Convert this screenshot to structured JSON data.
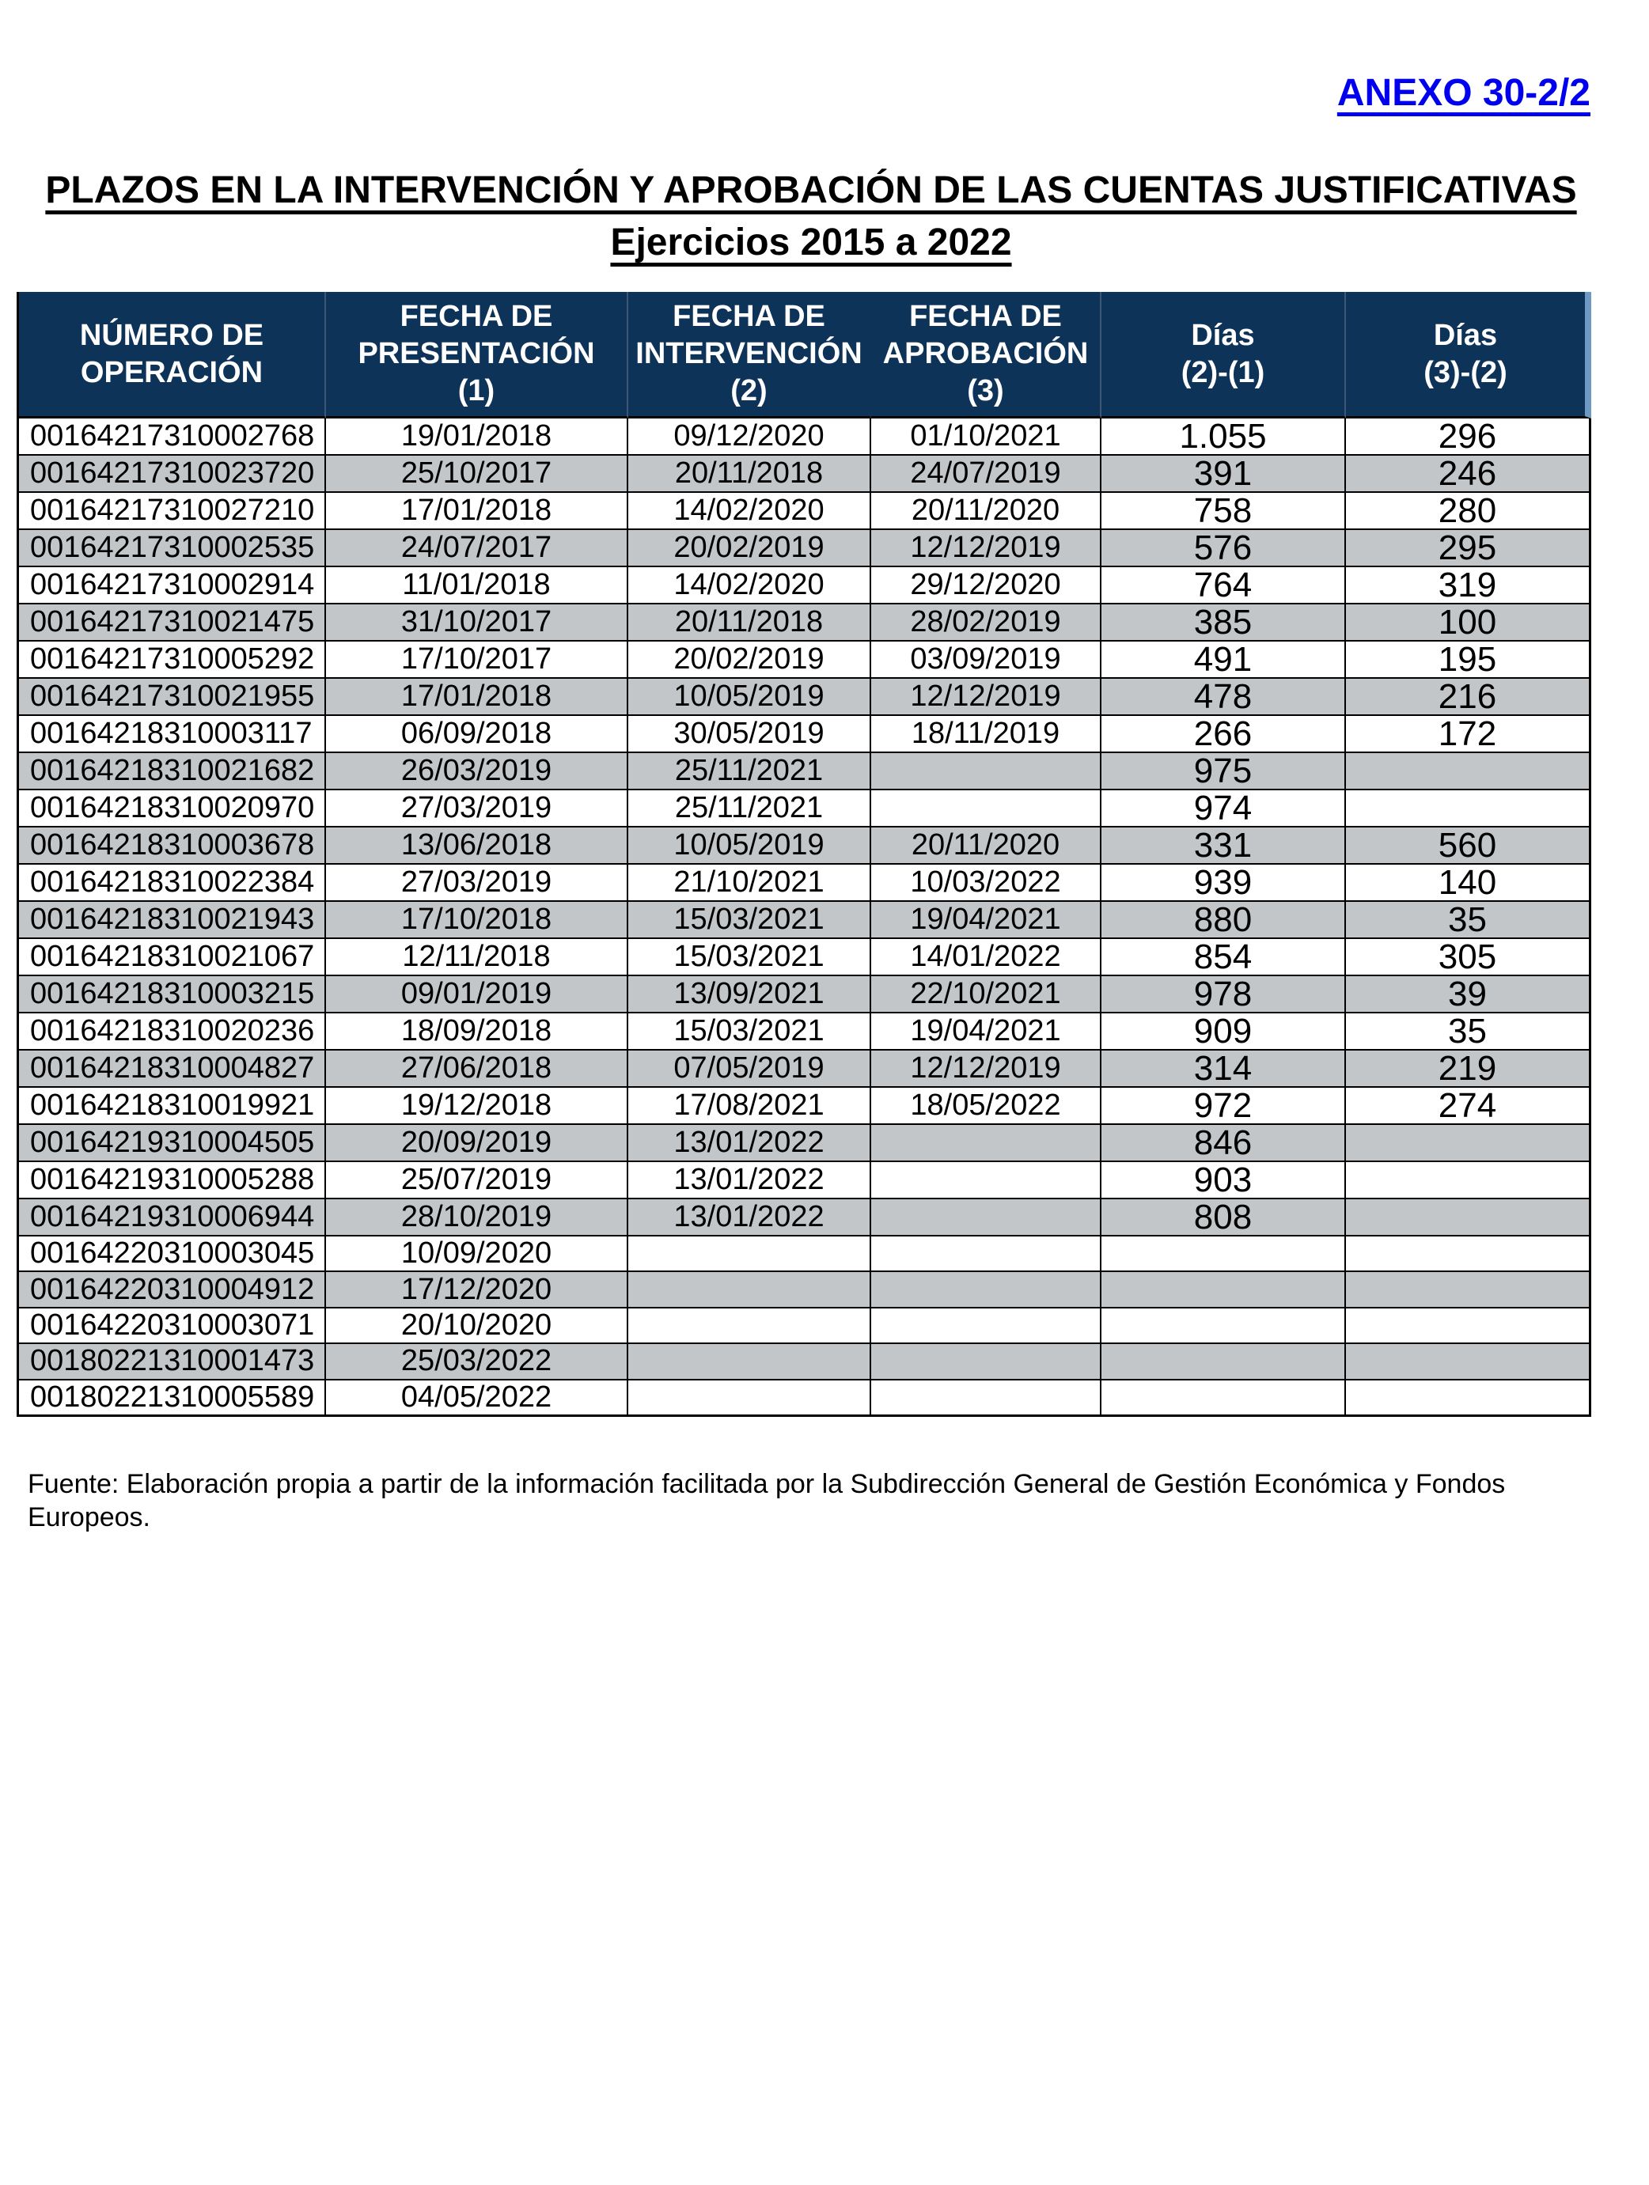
{
  "page": {
    "annex_label": "ANEXO 30-2/2",
    "title_line1": "PLAZOS EN LA INTERVENCIÓN Y APROBACIÓN DE LAS CUENTAS JUSTIFICATIVAS",
    "title_line2": "Ejercicios 2015 a 2022",
    "footer": "Fuente: Elaboración propia a partir de la información facilitada por la Subdirección General de Gestión Económica y Fondos Europeos."
  },
  "colors": {
    "header_bg": "#0E3358",
    "header_text": "#FFFFFF",
    "row_alt_bg": "#C2C6C9",
    "annex_blue": "#0000EE",
    "border_black": "#000000",
    "header_edge_light_blue": "#6E99C2"
  },
  "table": {
    "header_lines": [
      [
        "NÚMERO DE",
        "OPERACIÓN"
      ],
      [
        "FECHA DE",
        "PRESENTACIÓN",
        "(1)"
      ],
      [
        "FECHA DE",
        "INTERVENCIÓN",
        "(2)"
      ],
      [
        "FECHA DE",
        "APROBACIÓN",
        "(3)"
      ],
      [
        "Días",
        "(2)-(1)"
      ],
      [
        "Días",
        "(3)-(2)"
      ]
    ],
    "rows": [
      [
        "00164217310002768",
        "19/01/2018",
        "09/12/2020",
        "01/10/2021",
        "1.055",
        "296"
      ],
      [
        "00164217310023720",
        "25/10/2017",
        "20/11/2018",
        "24/07/2019",
        "391",
        "246"
      ],
      [
        "00164217310027210",
        "17/01/2018",
        "14/02/2020",
        "20/11/2020",
        "758",
        "280"
      ],
      [
        "00164217310002535",
        "24/07/2017",
        "20/02/2019",
        "12/12/2019",
        "576",
        "295"
      ],
      [
        "00164217310002914",
        "11/01/2018",
        "14/02/2020",
        "29/12/2020",
        "764",
        "319"
      ],
      [
        "00164217310021475",
        "31/10/2017",
        "20/11/2018",
        "28/02/2019",
        "385",
        "100"
      ],
      [
        "00164217310005292",
        "17/10/2017",
        "20/02/2019",
        "03/09/2019",
        "491",
        "195"
      ],
      [
        "00164217310021955",
        "17/01/2018",
        "10/05/2019",
        "12/12/2019",
        "478",
        "216"
      ],
      [
        "00164218310003117",
        "06/09/2018",
        "30/05/2019",
        "18/11/2019",
        "266",
        "172"
      ],
      [
        "00164218310021682",
        "26/03/2019",
        "25/11/2021",
        "",
        "975",
        ""
      ],
      [
        "00164218310020970",
        "27/03/2019",
        "25/11/2021",
        "",
        "974",
        ""
      ],
      [
        "00164218310003678",
        "13/06/2018",
        "10/05/2019",
        "20/11/2020",
        "331",
        "560"
      ],
      [
        "00164218310022384",
        "27/03/2019",
        "21/10/2021",
        "10/03/2022",
        "939",
        "140"
      ],
      [
        "00164218310021943",
        "17/10/2018",
        "15/03/2021",
        "19/04/2021",
        "880",
        "35"
      ],
      [
        "00164218310021067",
        "12/11/2018",
        "15/03/2021",
        "14/01/2022",
        "854",
        "305"
      ],
      [
        "00164218310003215",
        "09/01/2019",
        "13/09/2021",
        "22/10/2021",
        "978",
        "39"
      ],
      [
        "00164218310020236",
        "18/09/2018",
        "15/03/2021",
        "19/04/2021",
        "909",
        "35"
      ],
      [
        "00164218310004827",
        "27/06/2018",
        "07/05/2019",
        "12/12/2019",
        "314",
        "219"
      ],
      [
        "00164218310019921",
        "19/12/2018",
        "17/08/2021",
        "18/05/2022",
        "972",
        "274"
      ],
      [
        "00164219310004505",
        "20/09/2019",
        "13/01/2022",
        "",
        "846",
        ""
      ],
      [
        "00164219310005288",
        "25/07/2019",
        "13/01/2022",
        "",
        "903",
        ""
      ],
      [
        "00164219310006944",
        "28/10/2019",
        "13/01/2022",
        "",
        "808",
        ""
      ],
      [
        "00164220310003045",
        "10/09/2020",
        "",
        "",
        "",
        ""
      ],
      [
        "00164220310004912",
        "17/12/2020",
        "",
        "",
        "",
        ""
      ],
      [
        "00164220310003071",
        "20/10/2020",
        "",
        "",
        "",
        ""
      ],
      [
        "00180221310001473",
        "25/03/2022",
        "",
        "",
        "",
        ""
      ],
      [
        "00180221310005589",
        "04/05/2022",
        "",
        "",
        "",
        ""
      ]
    ]
  }
}
